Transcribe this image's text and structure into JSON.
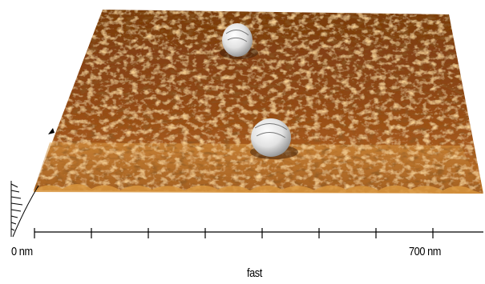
{
  "figure": {
    "description_type": "3D AFM height map of a nanoparticle-decorated surface",
    "colors": {
      "surface_dark": "#5a2a08",
      "surface_mid": "#a4561a",
      "surface_light": "#e7a247",
      "highlight": "#f7d886",
      "particle": "#e6e6e6",
      "axis": "#000000"
    }
  },
  "axis": {
    "start_label": "0 nm",
    "end_label": "700 nm",
    "direction_label": "fast"
  }
}
